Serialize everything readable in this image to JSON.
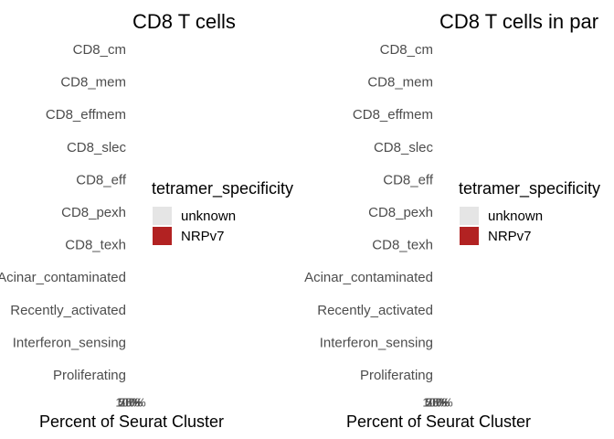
{
  "chart_data": [
    {
      "type": "bar",
      "orientation": "horizontal",
      "stacked": true,
      "title": "CD8 T cells",
      "xlabel": "Percent of Seurat Cluster",
      "ylabel": "",
      "categories": [
        "CD8_cm",
        "CD8_mem",
        "CD8_effmem",
        "CD8_slec",
        "CD8_eff",
        "CD8_pexh",
        "CD8_texh",
        "Acinar_contaminated",
        "Recently_activated",
        "Interferon_sensing",
        "Proliferating"
      ],
      "x_tick_labels": [
        "0%",
        "25%",
        "50%",
        "75%",
        "100%"
      ],
      "xlim": [
        0,
        100
      ],
      "legend": {
        "title": "tetramer_specificity",
        "placement": "right",
        "items": [
          {
            "label": "unknown",
            "color": "#e5e5e5"
          },
          {
            "label": "NRPv7",
            "color": "#b22222"
          }
        ]
      }
    },
    {
      "type": "bar",
      "orientation": "horizontal",
      "stacked": true,
      "title": "CD8 T cells in par",
      "xlabel": "Percent of Seurat Cluster",
      "ylabel": "",
      "categories": [
        "CD8_cm",
        "CD8_mem",
        "CD8_effmem",
        "CD8_slec",
        "CD8_eff",
        "CD8_pexh",
        "CD8_texh",
        "Acinar_contaminated",
        "Recently_activated",
        "Interferon_sensing",
        "Proliferating"
      ],
      "x_tick_labels": [
        "0%",
        "25%",
        "50%",
        "75%",
        "100%"
      ],
      "xlim": [
        0,
        100
      ],
      "legend": {
        "title": "tetramer_specificity",
        "placement": "right",
        "items": [
          {
            "label": "unknown",
            "color": "#e5e5e5"
          },
          {
            "label": "NRPv7",
            "color": "#b22222"
          }
        ]
      }
    }
  ]
}
